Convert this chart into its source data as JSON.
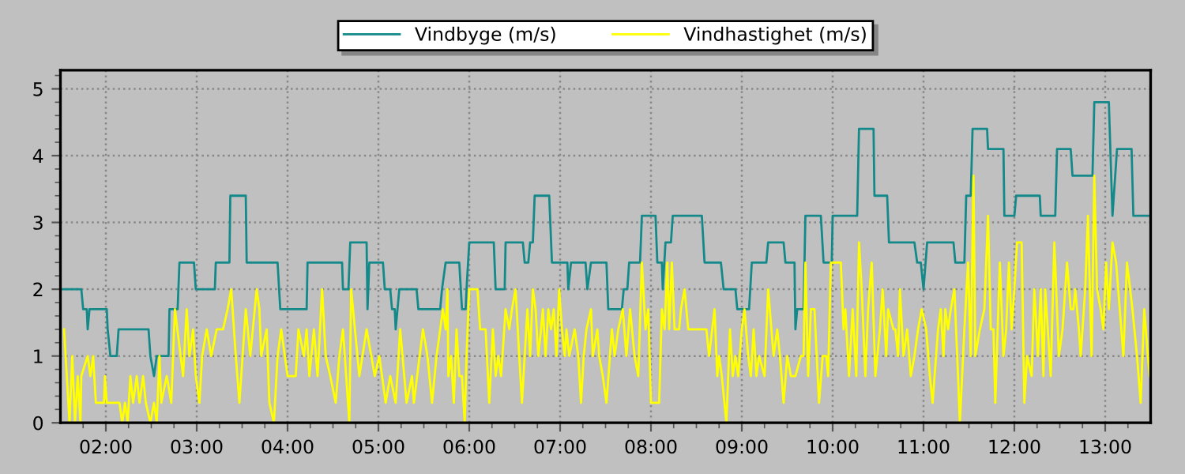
{
  "chart_data": {
    "type": "line",
    "xlim": [
      1.5,
      13.5
    ],
    "ylim": [
      0,
      5.28
    ],
    "xticks": [
      {
        "value": 2,
        "label": "02:00"
      },
      {
        "value": 3,
        "label": "03:00"
      },
      {
        "value": 4,
        "label": "04:00"
      },
      {
        "value": 5,
        "label": "05:00"
      },
      {
        "value": 6,
        "label": "06:00"
      },
      {
        "value": 7,
        "label": "07:00"
      },
      {
        "value": 8,
        "label": "08:00"
      },
      {
        "value": 9,
        "label": "09:00"
      },
      {
        "value": 10,
        "label": "10:00"
      },
      {
        "value": 11,
        "label": "11:00"
      },
      {
        "value": 12,
        "label": "12:00"
      },
      {
        "value": 13,
        "label": "13:00"
      },
      {
        "value": 1.75,
        "label": null
      },
      {
        "value": 2.25,
        "label": null
      },
      {
        "value": 2.5,
        "label": null
      },
      {
        "value": 2.75,
        "label": null
      },
      {
        "value": 3.25,
        "label": null
      },
      {
        "value": 3.5,
        "label": null
      },
      {
        "value": 3.75,
        "label": null
      },
      {
        "value": 4.25,
        "label": null
      },
      {
        "value": 4.5,
        "label": null
      },
      {
        "value": 4.75,
        "label": null
      },
      {
        "value": 5.25,
        "label": null
      },
      {
        "value": 5.5,
        "label": null
      },
      {
        "value": 5.75,
        "label": null
      },
      {
        "value": 6.25,
        "label": null
      },
      {
        "value": 6.5,
        "label": null
      },
      {
        "value": 6.75,
        "label": null
      },
      {
        "value": 7.25,
        "label": null
      },
      {
        "value": 7.5,
        "label": null
      },
      {
        "value": 7.75,
        "label": null
      },
      {
        "value": 8.25,
        "label": null
      },
      {
        "value": 8.5,
        "label": null
      },
      {
        "value": 8.75,
        "label": null
      },
      {
        "value": 9.25,
        "label": null
      },
      {
        "value": 9.5,
        "label": null
      },
      {
        "value": 9.75,
        "label": null
      },
      {
        "value": 10.25,
        "label": null
      },
      {
        "value": 10.5,
        "label": null
      },
      {
        "value": 10.75,
        "label": null
      },
      {
        "value": 11.25,
        "label": null
      },
      {
        "value": 11.5,
        "label": null
      },
      {
        "value": 11.75,
        "label": null
      },
      {
        "value": 12.25,
        "label": null
      },
      {
        "value": 12.5,
        "label": null
      },
      {
        "value": 12.75,
        "label": null
      },
      {
        "value": 13.25,
        "label": null
      }
    ],
    "yticks": [
      0,
      1,
      2,
      3,
      4,
      5,
      {
        "value": 0.2,
        "label": null
      },
      {
        "value": 0.4,
        "label": null
      },
      {
        "value": 0.6,
        "label": null
      },
      {
        "value": 0.8,
        "label": null
      },
      {
        "value": 1.2,
        "label": null
      },
      {
        "value": 1.4,
        "label": null
      },
      {
        "value": 1.6,
        "label": null
      },
      {
        "value": 1.8,
        "label": null
      },
      {
        "value": 2.2,
        "label": null
      },
      {
        "value": 2.4,
        "label": null
      },
      {
        "value": 2.6,
        "label": null
      },
      {
        "value": 2.8,
        "label": null
      },
      {
        "value": 3.2,
        "label": null
      },
      {
        "value": 3.4,
        "label": null
      },
      {
        "value": 3.6,
        "label": null
      },
      {
        "value": 3.8,
        "label": null
      },
      {
        "value": 4.2,
        "label": null
      },
      {
        "value": 4.4,
        "label": null
      },
      {
        "value": 4.6,
        "label": null
      },
      {
        "value": 4.8,
        "label": null
      },
      {
        "value": 5.2,
        "label": null
      }
    ],
    "grid": true,
    "legend": "top",
    "line_style": "solid",
    "series": [
      {
        "name": "Vindbyge (m/s)",
        "color": "#13898a",
        "x": [
          1.51,
          1.73,
          1.75,
          1.79,
          1.8,
          1.82,
          2.01,
          2.02,
          2.05,
          2.12,
          2.14,
          2.47,
          2.49,
          2.53,
          2.56,
          2.69,
          2.7,
          2.79,
          2.81,
          2.97,
          2.99,
          3.2,
          3.21,
          3.36,
          3.37,
          3.54,
          3.55,
          3.89,
          3.92,
          4.21,
          4.22,
          4.6,
          4.61,
          4.67,
          4.69,
          4.87,
          4.88,
          4.9,
          5.05,
          5.07,
          5.13,
          5.15,
          5.18,
          5.19,
          5.23,
          5.42,
          5.44,
          5.68,
          5.7,
          5.74,
          5.89,
          5.92,
          5.96,
          5.97,
          6.0,
          6.27,
          6.29,
          6.39,
          6.4,
          6.59,
          6.61,
          6.65,
          6.67,
          6.7,
          6.72,
          6.88,
          6.91,
          7.08,
          7.09,
          7.12,
          7.28,
          7.3,
          7.34,
          7.51,
          7.53,
          7.68,
          7.7,
          7.74,
          7.76,
          7.88,
          7.9,
          8.05,
          8.07,
          8.12,
          8.13,
          8.16,
          8.22,
          8.24,
          8.56,
          8.59,
          8.77,
          8.8,
          8.93,
          8.95,
          9.08,
          9.11,
          9.27,
          9.29,
          9.46,
          9.48,
          9.58,
          9.59,
          9.61,
          9.68,
          9.7,
          9.87,
          9.9,
          9.99,
          10.0,
          10.27,
          10.29,
          10.45,
          10.46,
          10.6,
          10.62,
          10.9,
          10.93,
          10.97,
          11.0,
          11.04,
          11.33,
          11.35,
          11.45,
          11.47,
          11.52,
          11.54,
          11.7,
          11.71,
          11.88,
          11.89,
          12.0,
          12.02,
          12.28,
          12.29,
          12.45,
          12.47,
          12.62,
          12.64,
          12.86,
          12.88,
          13.04,
          13.08,
          13.13,
          13.29,
          13.31,
          13.49
        ],
        "values": [
          2.0,
          2.0,
          1.7,
          1.7,
          1.4,
          1.7,
          1.7,
          1.4,
          1.0,
          1.0,
          1.4,
          1.4,
          1.0,
          0.7,
          1.0,
          1.0,
          1.7,
          1.7,
          2.4,
          2.4,
          2.0,
          2.0,
          2.4,
          2.4,
          3.4,
          3.4,
          2.4,
          2.4,
          1.7,
          1.7,
          2.4,
          2.4,
          2.0,
          2.0,
          2.7,
          2.7,
          1.7,
          2.4,
          2.4,
          2.0,
          2.0,
          1.7,
          1.7,
          1.4,
          2.0,
          2.0,
          1.7,
          1.7,
          2.0,
          2.4,
          2.4,
          1.7,
          1.7,
          2.0,
          2.7,
          2.7,
          2.0,
          2.0,
          2.7,
          2.7,
          2.4,
          2.4,
          2.7,
          2.7,
          3.4,
          3.4,
          2.4,
          2.4,
          2.0,
          2.4,
          2.4,
          2.0,
          2.4,
          2.4,
          1.7,
          1.7,
          2.0,
          2.0,
          2.4,
          2.4,
          3.1,
          3.1,
          2.4,
          2.4,
          2.0,
          2.7,
          2.7,
          3.1,
          3.1,
          2.4,
          2.4,
          2.0,
          2.0,
          1.7,
          1.7,
          2.4,
          2.4,
          2.7,
          2.7,
          2.4,
          2.4,
          1.4,
          1.7,
          1.7,
          3.1,
          3.1,
          2.4,
          2.4,
          3.1,
          3.1,
          4.4,
          4.4,
          3.4,
          3.4,
          2.7,
          2.7,
          2.4,
          2.4,
          2.0,
          2.7,
          2.7,
          2.4,
          2.4,
          3.4,
          3.4,
          4.4,
          4.4,
          4.1,
          4.1,
          3.1,
          3.1,
          3.4,
          3.4,
          3.1,
          3.1,
          4.1,
          4.1,
          3.7,
          3.7,
          4.8,
          4.8,
          3.1,
          4.1,
          4.1,
          3.1,
          3.1
        ]
      },
      {
        "name": "Vindhastighet (m/s)",
        "color": "#ffff00",
        "x": [
          1.54,
          1.6,
          1.63,
          1.66,
          1.69,
          1.72,
          1.73,
          1.8,
          1.83,
          1.86,
          1.89,
          1.98,
          1.99,
          2.01,
          2.15,
          2.18,
          2.21,
          2.24,
          2.27,
          2.3,
          2.34,
          2.37,
          2.41,
          2.44,
          2.49,
          2.53,
          2.56,
          2.59,
          2.61,
          2.67,
          2.72,
          2.76,
          2.85,
          2.89,
          2.92,
          2.96,
          2.99,
          3.03,
          3.06,
          3.11,
          3.16,
          3.22,
          3.29,
          3.34,
          3.38,
          3.43,
          3.47,
          3.54,
          3.59,
          3.66,
          3.69,
          3.71,
          3.77,
          3.8,
          3.85,
          3.89,
          3.93,
          4.0,
          4.09,
          4.12,
          4.18,
          4.21,
          4.24,
          4.29,
          4.33,
          4.38,
          4.42,
          4.47,
          4.53,
          4.57,
          4.61,
          4.68,
          4.7,
          4.79,
          4.87,
          4.96,
          5.01,
          5.08,
          5.13,
          5.19,
          5.24,
          5.31,
          5.37,
          5.39,
          5.49,
          5.54,
          5.59,
          5.64,
          5.68,
          5.71,
          5.74,
          5.76,
          5.77,
          5.8,
          5.83,
          5.86,
          5.89,
          5.92,
          5.95,
          5.97,
          6.0,
          6.09,
          6.12,
          6.18,
          6.22,
          6.26,
          6.29,
          6.32,
          6.35,
          6.4,
          6.44,
          6.47,
          6.51,
          6.55,
          6.58,
          6.61,
          6.64,
          6.67,
          6.7,
          6.73,
          6.76,
          6.79,
          6.81,
          6.84,
          6.87,
          6.9,
          6.93,
          6.96,
          6.99,
          7.02,
          7.05,
          7.07,
          7.1,
          7.16,
          7.2,
          7.23,
          7.26,
          7.29,
          7.34,
          7.36,
          7.41,
          7.43,
          7.47,
          7.51,
          7.57,
          7.6,
          7.64,
          7.69,
          7.73,
          7.77,
          7.82,
          7.86,
          7.9,
          7.94,
          7.97,
          8.0,
          8.09,
          8.12,
          8.15,
          8.18,
          8.2,
          8.23,
          8.26,
          8.31,
          8.33,
          8.37,
          8.41,
          8.45,
          8.52,
          8.61,
          8.64,
          8.7,
          8.73,
          8.75,
          8.78,
          8.83,
          8.87,
          8.9,
          8.93,
          8.96,
          9.0,
          9.03,
          9.07,
          9.1,
          9.13,
          9.16,
          9.19,
          9.25,
          9.29,
          9.35,
          9.39,
          9.42,
          9.46,
          9.5,
          9.54,
          9.59,
          9.65,
          9.68,
          9.7,
          9.73,
          9.76,
          9.8,
          9.81,
          9.85,
          9.89,
          9.93,
          9.95,
          9.98,
          10.09,
          10.12,
          10.14,
          10.18,
          10.22,
          10.26,
          10.29,
          10.32,
          10.36,
          10.39,
          10.43,
          10.47,
          10.52,
          10.55,
          10.59,
          10.61,
          10.67,
          10.69,
          10.72,
          10.74,
          10.78,
          10.82,
          10.86,
          10.9,
          10.94,
          10.98,
          11.03,
          11.07,
          11.1,
          11.16,
          11.19,
          11.22,
          11.24,
          11.27,
          11.3,
          11.34,
          11.38,
          11.4,
          11.45,
          11.49,
          11.52,
          11.55,
          11.57,
          11.62,
          11.67,
          11.71,
          11.74,
          11.77,
          11.79,
          11.84,
          11.88,
          11.91,
          11.94,
          11.97,
          12.0,
          12.03,
          12.08,
          12.11,
          12.14,
          12.19,
          12.22,
          12.26,
          12.29,
          12.32,
          12.34,
          12.4,
          12.44,
          12.49,
          12.53,
          12.58,
          12.62,
          12.65,
          12.67,
          12.71,
          12.73,
          12.78,
          12.81,
          12.85,
          12.88,
          12.91,
          12.95,
          12.98,
          13.01,
          13.04,
          13.08,
          13.12,
          13.16,
          13.2,
          13.24,
          13.3,
          13.35,
          13.39,
          13.43,
          13.47,
          13.49
        ],
        "values": [
          1.4,
          0,
          1.0,
          0,
          0.7,
          0,
          0.7,
          1.0,
          0.7,
          1.0,
          0.3,
          0.3,
          0.7,
          0.3,
          0.3,
          0,
          0.3,
          0,
          0.7,
          0.3,
          0.7,
          0.3,
          0.7,
          0.3,
          0,
          0.3,
          0,
          1.0,
          0.3,
          0.7,
          0.3,
          1.7,
          0.7,
          1.7,
          1.0,
          1.4,
          0.7,
          0.3,
          1.0,
          1.4,
          1.0,
          1.4,
          1.4,
          1.7,
          2.0,
          1.0,
          0.3,
          1.7,
          1.0,
          2.0,
          1.7,
          1.0,
          1.4,
          0.3,
          0,
          1.0,
          1.4,
          0.7,
          0.7,
          1.4,
          1.0,
          1.4,
          0.7,
          1.4,
          0.7,
          2.0,
          1.0,
          0.7,
          0.3,
          1.0,
          1.4,
          0,
          2.0,
          0.7,
          1.4,
          0.7,
          1.0,
          0.3,
          0.7,
          0.3,
          1.4,
          0.3,
          0.7,
          0.3,
          1.4,
          1.0,
          0.3,
          1.0,
          1.4,
          1.7,
          1.4,
          2.0,
          0.7,
          1.0,
          0.3,
          1.4,
          0.7,
          0.7,
          0,
          1.0,
          2.0,
          2.0,
          1.4,
          1.4,
          0.3,
          1.4,
          0.7,
          1.0,
          0.7,
          1.7,
          1.4,
          1.7,
          2.0,
          1.0,
          0.3,
          1.0,
          1.7,
          1.0,
          2.0,
          1.7,
          1.0,
          1.4,
          1.7,
          1.0,
          1.7,
          1.4,
          1.7,
          1.0,
          2.0,
          1.4,
          1.0,
          1.4,
          1.0,
          1.4,
          1.0,
          0.3,
          1.0,
          1.4,
          1.7,
          1.0,
          1.4,
          1.0,
          0.7,
          0.3,
          1.4,
          1.0,
          1.4,
          1.7,
          1.0,
          1.7,
          1.0,
          0.7,
          2.4,
          1.4,
          1.7,
          0.3,
          0.3,
          1.7,
          1.4,
          2.4,
          1.4,
          2.4,
          1.4,
          1.4,
          1.7,
          2.0,
          1.4,
          1.4,
          1.4,
          1.4,
          1.0,
          1.7,
          0.7,
          1.0,
          0.7,
          0,
          1.4,
          0.7,
          1.0,
          0.7,
          1.4,
          1.7,
          1.0,
          0.7,
          1.4,
          0.7,
          1.0,
          0.7,
          2.0,
          1.0,
          1.4,
          1.0,
          0.3,
          1.0,
          0.7,
          0.7,
          1.0,
          1.0,
          2.4,
          0.7,
          1.7,
          1.7,
          1.4,
          0.3,
          1.0,
          1.0,
          0.7,
          2.4,
          2.4,
          1.4,
          1.7,
          0.7,
          1.7,
          0.7,
          2.7,
          2.0,
          0.7,
          1.7,
          2.4,
          0.7,
          1.4,
          2.0,
          1.0,
          1.7,
          1.4,
          1.4,
          1.0,
          2.0,
          1.0,
          1.4,
          0.7,
          1.0,
          1.4,
          1.7,
          1.4,
          0.7,
          0.3,
          1.4,
          1.7,
          1.0,
          1.7,
          1.4,
          1.7,
          2.0,
          0.7,
          0,
          1.4,
          2.4,
          1.0,
          3.7,
          1.0,
          1.4,
          1.7,
          3.1,
          1.4,
          1.4,
          0.3,
          2.4,
          1.0,
          1.4,
          2.4,
          1.4,
          2.0,
          2.7,
          2.7,
          0.3,
          1.0,
          0.7,
          2.0,
          1.0,
          2.0,
          0.7,
          2.0,
          0.7,
          2.7,
          1.0,
          1.4,
          2.4,
          1.7,
          1.7,
          2.0,
          1.4,
          1.0,
          2.0,
          3.1,
          1.0,
          3.7,
          2.0,
          1.7,
          1.4,
          2.4,
          1.7,
          2.7,
          2.4,
          1.7,
          1.0,
          2.4,
          1.7,
          1.0,
          0.3,
          1.7,
          1.0,
          0.7
        ]
      }
    ]
  }
}
